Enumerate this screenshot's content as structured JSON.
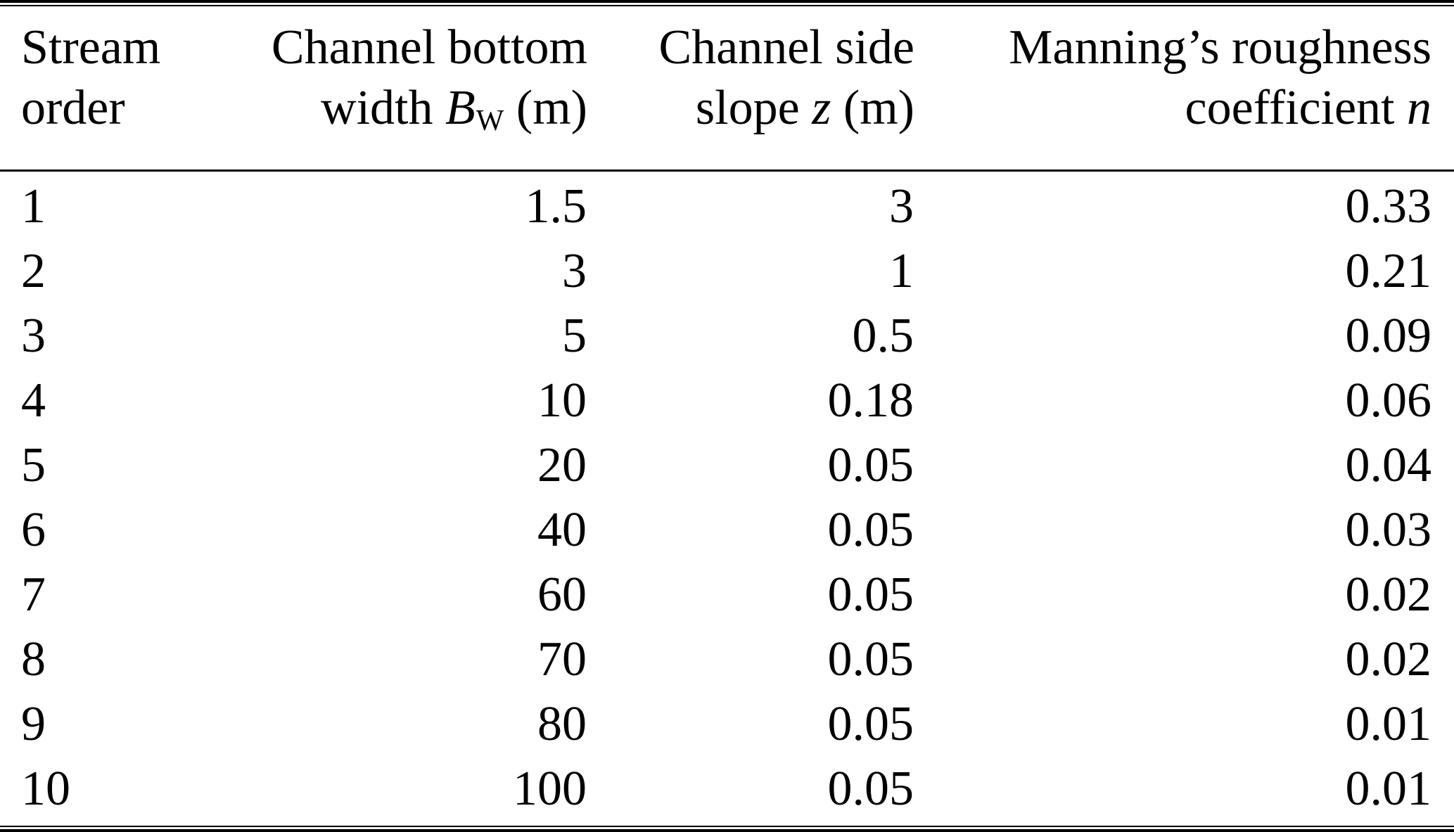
{
  "page": {
    "background_color": "#ffffff",
    "text_color": "#000000",
    "rule_color": "#000000"
  },
  "table": {
    "header": {
      "stream_order": {
        "line1": "Stream",
        "line2": "order"
      },
      "bottom_width": {
        "line1": "Channel bottom",
        "line2_pre": "width ",
        "symbol": "B",
        "subscript": "W",
        "line2_post": " (m)"
      },
      "side_slope": {
        "line1": "Channel side",
        "line2_pre": "slope ",
        "symbol": "z",
        "line2_post": " (m)"
      },
      "roughness": {
        "line1": "Manning’s roughness",
        "line2_pre": "coefficient ",
        "symbol": "n",
        "line2_post": ""
      }
    },
    "rows": [
      [
        "1",
        "1.5",
        "3",
        "0.33"
      ],
      [
        "2",
        "3",
        "1",
        "0.21"
      ],
      [
        "3",
        "5",
        "0.5",
        "0.09"
      ],
      [
        "4",
        "10",
        "0.18",
        "0.06"
      ],
      [
        "5",
        "20",
        "0.05",
        "0.04"
      ],
      [
        "6",
        "40",
        "0.05",
        "0.03"
      ],
      [
        "7",
        "60",
        "0.05",
        "0.02"
      ],
      [
        "8",
        "70",
        "0.05",
        "0.02"
      ],
      [
        "9",
        "80",
        "0.05",
        "0.01"
      ],
      [
        "10",
        "100",
        "0.05",
        "0.01"
      ]
    ]
  }
}
